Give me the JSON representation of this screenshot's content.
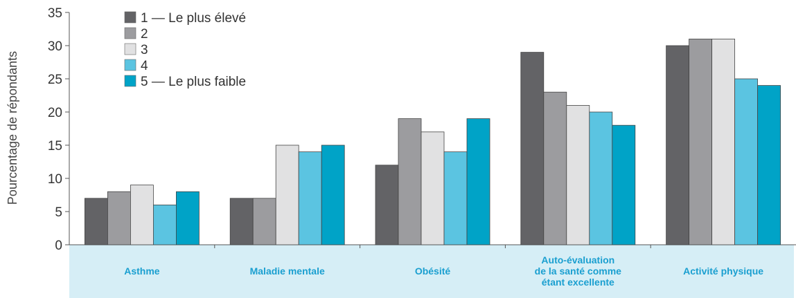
{
  "chart_data": {
    "type": "bar",
    "ylabel": "Pourcentage de répondants",
    "xlabel": "",
    "ylim": [
      0,
      35
    ],
    "yticks": [
      0,
      5,
      10,
      15,
      20,
      25,
      30,
      35
    ],
    "grid": false,
    "legend_position": "top-left",
    "categories": [
      [
        "Asthme"
      ],
      [
        "Maladie mentale"
      ],
      [
        "Obésité"
      ],
      [
        "Auto-évaluation",
        "de la santé comme",
        "étant excellente"
      ],
      [
        "Activité physique"
      ]
    ],
    "series": [
      {
        "name": "1 — Le plus élevé",
        "color": "#636366",
        "values": [
          7,
          7,
          12,
          29,
          30
        ]
      },
      {
        "name": "2",
        "color": "#9c9c9f",
        "values": [
          8,
          7,
          19,
          23,
          31
        ]
      },
      {
        "name": "3",
        "color": "#e1e1e2",
        "values": [
          9,
          15,
          17,
          21,
          31
        ]
      },
      {
        "name": "4",
        "color": "#5bc4e1",
        "values": [
          6,
          14,
          14,
          20,
          25
        ]
      },
      {
        "name": "5 — Le plus faible",
        "color": "#00a3c7",
        "values": [
          8,
          15,
          19,
          18,
          24
        ]
      }
    ],
    "category_band_color": "#d6eef6",
    "category_text_color": "#1a9fd0"
  }
}
